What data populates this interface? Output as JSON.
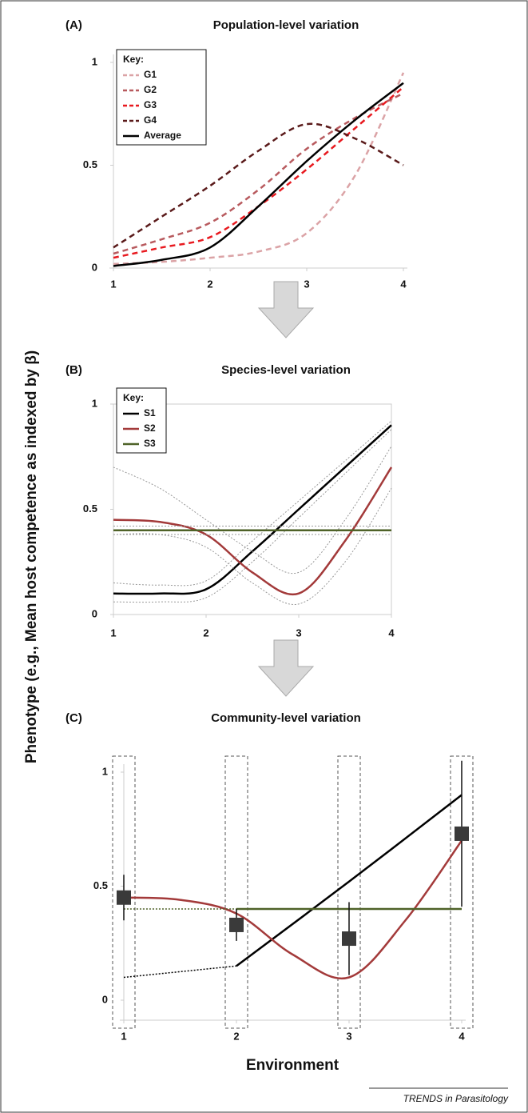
{
  "ylabel": "Phenotype (e.g., Mean host competence as indexed by β)",
  "xlabel": "Environment",
  "credit": "TRENDS in Parasitology",
  "chart_data": [
    {
      "type": "line",
      "tag": "(A)",
      "title": "Population-level variation",
      "legend_title": "Key:",
      "x": [
        1,
        1.5,
        2,
        2.5,
        3,
        3.5,
        4
      ],
      "series": [
        {
          "name": "G1",
          "color": "#dba3a6",
          "style": "dashed",
          "values": [
            0.02,
            0.03,
            0.05,
            0.08,
            0.17,
            0.45,
            0.95
          ]
        },
        {
          "name": "G2",
          "color": "#b85a5e",
          "style": "dashed",
          "values": [
            0.07,
            0.14,
            0.22,
            0.38,
            0.58,
            0.73,
            0.85
          ]
        },
        {
          "name": "G3",
          "color": "#e8191f",
          "style": "dashed",
          "values": [
            0.05,
            0.1,
            0.15,
            0.3,
            0.48,
            0.68,
            0.88
          ]
        },
        {
          "name": "G4",
          "color": "#5a1a1a",
          "style": "dashed",
          "values": [
            0.1,
            0.25,
            0.4,
            0.57,
            0.7,
            0.63,
            0.5
          ]
        },
        {
          "name": "Average",
          "color": "#000000",
          "style": "solid",
          "values": [
            0.01,
            0.04,
            0.1,
            0.3,
            0.52,
            0.72,
            0.9
          ]
        }
      ],
      "xlim": [
        1,
        4
      ],
      "ylim": [
        0,
        1
      ],
      "xticks": [
        1,
        2,
        3,
        4
      ],
      "yticks": [
        0,
        0.5,
        1
      ]
    },
    {
      "type": "line",
      "tag": "(B)",
      "title": "Species-level variation",
      "legend_title": "Key:",
      "frame": true,
      "x": [
        1,
        1.5,
        2,
        2.5,
        3,
        3.5,
        4
      ],
      "series": [
        {
          "name": "S1",
          "color": "#000000",
          "style": "solid",
          "values": [
            0.1,
            0.1,
            0.12,
            0.3,
            0.5,
            0.7,
            0.9
          ],
          "lower": [
            0.06,
            0.06,
            0.08,
            0.25,
            0.46,
            0.67,
            0.88
          ],
          "upper": [
            0.15,
            0.14,
            0.16,
            0.35,
            0.54,
            0.73,
            0.92
          ]
        },
        {
          "name": "S2",
          "color": "#a33a3a",
          "style": "solid",
          "values": [
            0.45,
            0.44,
            0.38,
            0.2,
            0.1,
            0.35,
            0.7
          ],
          "lower": [
            0.38,
            0.38,
            0.32,
            0.15,
            0.05,
            0.25,
            0.6
          ],
          "upper": [
            0.7,
            0.6,
            0.45,
            0.3,
            0.2,
            0.45,
            0.8
          ]
        },
        {
          "name": "S3",
          "color": "#4f6228",
          "style": "solid",
          "values": [
            0.4,
            0.4,
            0.4,
            0.4,
            0.4,
            0.4,
            0.4
          ],
          "lower": [
            0.38,
            0.38,
            0.38,
            0.38,
            0.38,
            0.38,
            0.38
          ],
          "upper": [
            0.42,
            0.42,
            0.42,
            0.42,
            0.42,
            0.42,
            0.42
          ]
        }
      ],
      "xlim": [
        1,
        4
      ],
      "ylim": [
        0,
        1
      ],
      "xticks": [
        1,
        2,
        3,
        4
      ],
      "yticks": [
        0,
        0.5,
        1
      ]
    },
    {
      "type": "line",
      "tag": "(C)",
      "title": "Community-level variation",
      "series": [
        {
          "color": "#000000",
          "style": "dotted",
          "x": [
            1,
            2
          ],
          "values": [
            0.1,
            0.15
          ]
        },
        {
          "color": "#000000",
          "style": "solid",
          "x": [
            2,
            3,
            4
          ],
          "values": [
            0.15,
            0.52,
            0.9
          ]
        },
        {
          "color": "#a33a3a",
          "style": "solid",
          "x": [
            1,
            1.5,
            2,
            2.5,
            3,
            3.5,
            4
          ],
          "values": [
            0.45,
            0.44,
            0.38,
            0.2,
            0.1,
            0.35,
            0.7
          ]
        },
        {
          "color": "#4f6228",
          "style": "dotted",
          "x": [
            1,
            2
          ],
          "values": [
            0.4,
            0.4
          ]
        },
        {
          "color": "#4f6228",
          "style": "solid",
          "x": [
            2,
            4
          ],
          "values": [
            0.4,
            0.4
          ]
        }
      ],
      "error_bars": {
        "color": "#3a3a3a",
        "x": [
          1,
          2,
          3,
          4
        ],
        "values": [
          0.45,
          0.33,
          0.27,
          0.73
        ],
        "errors": [
          0.1,
          0.07,
          0.16,
          0.32
        ]
      },
      "xlim": [
        1,
        4
      ],
      "ylim": [
        0,
        1
      ],
      "xticks": [
        1,
        2,
        3,
        4
      ],
      "yticks": [
        0,
        0.5,
        1
      ]
    }
  ]
}
